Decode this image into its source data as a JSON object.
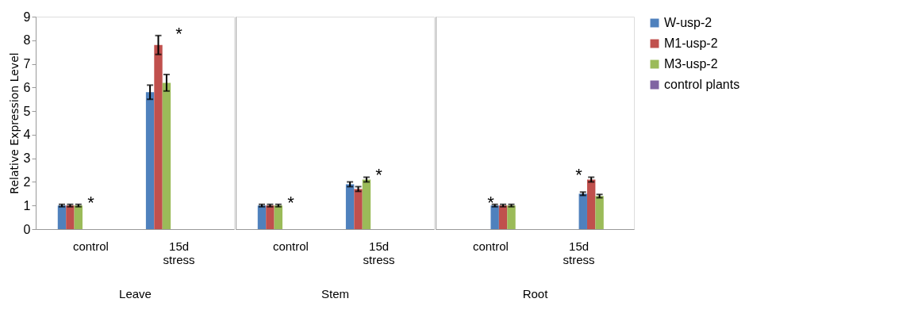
{
  "chart_data": [
    {
      "type": "bar",
      "categories": [
        "control",
        "15d stress"
      ],
      "xlabel": "Leave",
      "ylabel": "Relative Expression Level",
      "ylim": [
        0,
        9
      ],
      "yticks": [
        0,
        1,
        2,
        3,
        4,
        5,
        6,
        7,
        8,
        9
      ],
      "grid": false,
      "series": [
        {
          "color": "#4f81bd",
          "values": [
            1.0,
            5.8
          ],
          "errors": [
            0.05,
            0.3
          ]
        },
        {
          "color": "#c0504d",
          "values": [
            1.0,
            7.8
          ],
          "errors": [
            0.05,
            0.4
          ]
        },
        {
          "color": "#9bbb59",
          "values": [
            1.0,
            6.2
          ],
          "errors": [
            0.05,
            0.35
          ]
        }
      ],
      "annotations": [
        "*",
        "*"
      ]
    },
    {
      "type": "bar",
      "categories": [
        "control",
        "15d stress"
      ],
      "xlabel": "Stem",
      "ylim": [
        0,
        9
      ],
      "tick_labels": "x",
      "grid": false,
      "series": [
        {
          "color": "#4f81bd",
          "values": [
            1.0,
            1.9
          ],
          "errors": [
            0.05,
            0.1
          ]
        },
        {
          "color": "#c0504d",
          "values": [
            1.0,
            1.7
          ],
          "errors": [
            0.05,
            0.1
          ]
        },
        {
          "color": "#9bbb59",
          "values": [
            1.0,
            2.1
          ],
          "errors": [
            0.05,
            0.1
          ]
        }
      ],
      "annotations": [
        "*",
        "*"
      ]
    },
    {
      "type": "bar",
      "categories": [
        "control",
        "15d stress"
      ],
      "xlabel": "Root",
      "ylim": [
        0,
        9
      ],
      "tick_labels": "x",
      "grid": false,
      "legend": "right",
      "series": [
        {
          "name": "W-usp-2",
          "color": "#4f81bd",
          "values": [
            1.0,
            1.5
          ],
          "errors": [
            0.05,
            0.07
          ]
        },
        {
          "name": "M1-usp-2",
          "color": "#c0504d",
          "values": [
            1.0,
            2.1
          ],
          "errors": [
            0.05,
            0.1
          ]
        },
        {
          "name": "M3-usp-2",
          "color": "#9bbb59",
          "values": [
            1.0,
            1.4
          ],
          "errors": [
            0.05,
            0.07
          ]
        },
        {
          "name": "control plants",
          "color": "#8064a2",
          "values": [
            null,
            null
          ]
        }
      ],
      "annotations": [
        "*",
        "*"
      ]
    }
  ]
}
